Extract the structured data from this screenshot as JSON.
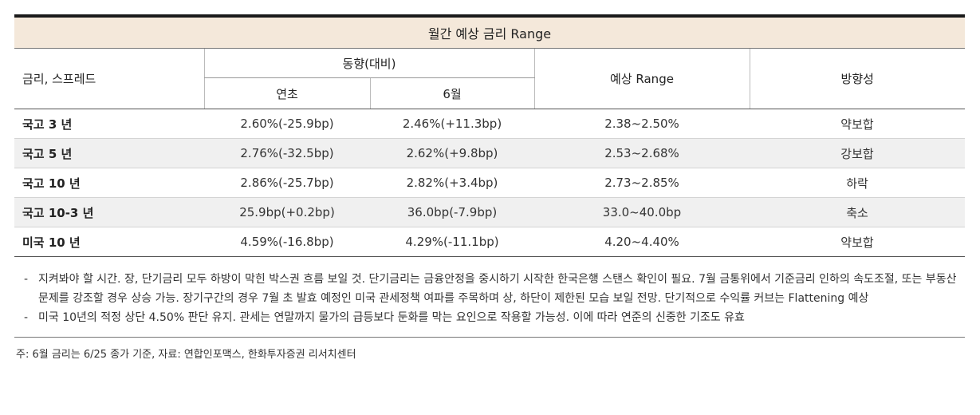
{
  "table": {
    "title": "월간 예상 금리 Range",
    "header": {
      "rate_spread": "금리, 스프레드",
      "trend": "동향(대비)",
      "ytd": "연초",
      "june": "6월",
      "expected_range": "예상 Range",
      "direction": "방향성"
    },
    "rows": [
      {
        "name": "국고 3 년",
        "ytd": "2.60%(-25.9bp)",
        "june": "2.46%(+11.3bp)",
        "range": "2.38~2.50%",
        "direction": "약보합"
      },
      {
        "name": "국고 5 년",
        "ytd": "2.76%(-32.5bp)",
        "june": "2.62%(+9.8bp)",
        "range": "2.53~2.68%",
        "direction": "강보합"
      },
      {
        "name": "국고 10 년",
        "ytd": "2.86%(-25.7bp)",
        "june": "2.82%(+3.4bp)",
        "range": "2.73~2.85%",
        "direction": "하락"
      },
      {
        "name": "국고 10-3 년",
        "ytd": "25.9bp(+0.2bp)",
        "june": "36.0bp(-7.9bp)",
        "range": "33.0~40.0bp",
        "direction": "축소"
      },
      {
        "name": "미국 10 년",
        "ytd": "4.59%(-16.8bp)",
        "june": "4.29%(-11.1bp)",
        "range": "4.20~4.40%",
        "direction": "약보합"
      }
    ]
  },
  "notes": [
    {
      "dash": "-",
      "text": "지켜봐야 할 시간. 장, 단기금리 모두 하방이 막힌 박스권 흐름 보일 것. 단기금리는 금융안정을 중시하기 시작한 한국은행 스탠스 확인이 필요. 7월 금통위에서 기준금리 인하의 속도조절, 또는 부동산 문제를 강조할 경우 상승 가능. 장기구간의 경우 7월 초 발효 예정인 미국 관세정책 여파를 주목하며 상, 하단이 제한된 모습 보일 전망. 단기적으로 수익률 커브는 Flattening 예상"
    },
    {
      "dash": "-",
      "text": "미국 10년의 적정 상단 4.50% 판단 유지. 관세는 연말까지 물가의 급등보다 둔화를 막는 요인으로 작용할 가능성. 이에 따라 연준의 신중한 기조도 유효"
    }
  ],
  "footer": "주: 6월 금리는 6/25 종가 기준, 자료: 연합인포맥스, 한화투자증권 리서치센터"
}
